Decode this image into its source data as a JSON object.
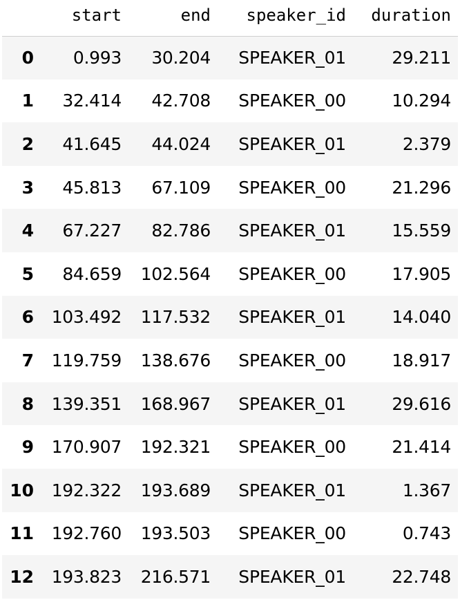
{
  "table": {
    "columns": [
      "",
      "start",
      "end",
      "speaker_id",
      "duration"
    ],
    "rows": [
      {
        "index": "0",
        "start": "0.993",
        "end": "30.204",
        "speaker_id": "SPEAKER_01",
        "duration": "29.211"
      },
      {
        "index": "1",
        "start": "32.414",
        "end": "42.708",
        "speaker_id": "SPEAKER_00",
        "duration": "10.294"
      },
      {
        "index": "2",
        "start": "41.645",
        "end": "44.024",
        "speaker_id": "SPEAKER_01",
        "duration": "2.379"
      },
      {
        "index": "3",
        "start": "45.813",
        "end": "67.109",
        "speaker_id": "SPEAKER_00",
        "duration": "21.296"
      },
      {
        "index": "4",
        "start": "67.227",
        "end": "82.786",
        "speaker_id": "SPEAKER_01",
        "duration": "15.559"
      },
      {
        "index": "5",
        "start": "84.659",
        "end": "102.564",
        "speaker_id": "SPEAKER_00",
        "duration": "17.905"
      },
      {
        "index": "6",
        "start": "103.492",
        "end": "117.532",
        "speaker_id": "SPEAKER_01",
        "duration": "14.040"
      },
      {
        "index": "7",
        "start": "119.759",
        "end": "138.676",
        "speaker_id": "SPEAKER_00",
        "duration": "18.917"
      },
      {
        "index": "8",
        "start": "139.351",
        "end": "168.967",
        "speaker_id": "SPEAKER_01",
        "duration": "29.616"
      },
      {
        "index": "9",
        "start": "170.907",
        "end": "192.321",
        "speaker_id": "SPEAKER_00",
        "duration": "21.414"
      },
      {
        "index": "10",
        "start": "192.322",
        "end": "193.689",
        "speaker_id": "SPEAKER_01",
        "duration": "1.367"
      },
      {
        "index": "11",
        "start": "192.760",
        "end": "193.503",
        "speaker_id": "SPEAKER_00",
        "duration": "0.743"
      },
      {
        "index": "12",
        "start": "193.823",
        "end": "216.571",
        "speaker_id": "SPEAKER_01",
        "duration": "22.748"
      }
    ]
  }
}
